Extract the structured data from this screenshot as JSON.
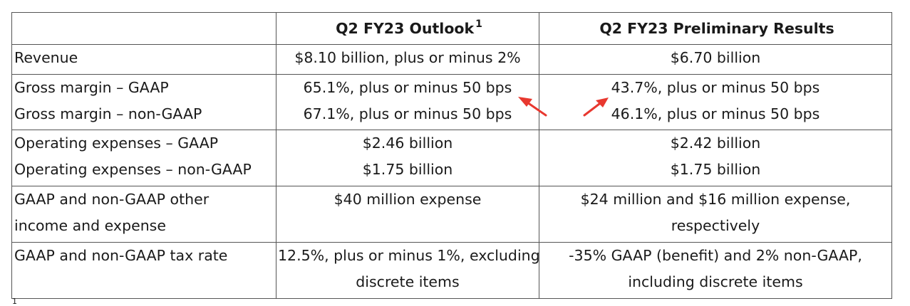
{
  "table": {
    "header": {
      "col0": "",
      "col1": "Q2 FY23 Outlook",
      "col1_sup": "1",
      "col2": "Q2 FY23 Preliminary Results"
    },
    "rows": [
      {
        "labels": [
          "Revenue"
        ],
        "outlook": [
          "$8.10 billion, plus or minus 2%"
        ],
        "results": [
          "$6.70 billion"
        ]
      },
      {
        "labels": [
          "Gross margin – GAAP",
          "Gross margin – non-GAAP"
        ],
        "outlook": [
          "65.1%, plus or minus 50 bps",
          "67.1%, plus or minus 50 bps"
        ],
        "results": [
          "43.7%, plus or minus 50 bps",
          "46.1%, plus or minus 50 bps"
        ]
      },
      {
        "labels": [
          "Operating expenses – GAAP",
          "Operating expenses – non-GAAP"
        ],
        "outlook": [
          "$2.46 billion",
          "$1.75 billion"
        ],
        "results": [
          "$2.42 billion",
          "$1.75 billion"
        ]
      },
      {
        "labels": [
          "GAAP and non-GAAP other",
          "income and expense"
        ],
        "outlook": [
          "$40 million expense"
        ],
        "results": [
          "$24 million and $16 million expense,",
          "respectively"
        ]
      },
      {
        "labels": [
          "GAAP and non-GAAP tax rate"
        ],
        "outlook": [
          "12.5%, plus or minus 1%, excluding",
          "discrete items"
        ],
        "results": [
          "-35% GAAP (benefit) and 2% non-GAAP,",
          "including discrete items"
        ]
      }
    ]
  },
  "footnote_marker": "1",
  "annotation": {
    "arrow_color": "#e8382f"
  }
}
